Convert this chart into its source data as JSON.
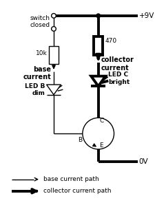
{
  "bg_color": "#ffffff",
  "fig_width": 2.26,
  "fig_height": 3.14,
  "dpi": 100,
  "lw_thin": 1.0,
  "lw_thick": 2.8,
  "labels": {
    "switch_closed": "switch\nclosed",
    "10k": "10k",
    "base_current": "base\ncurrent",
    "LED_B": "LED B\ndim",
    "470": "470",
    "collector_current": "collector\ncurrent",
    "LED_C": "LED C\nbright",
    "plus9V": "+9V",
    "0V": "0V",
    "B": "B",
    "C": "C",
    "E": "E",
    "base_path": "base current path",
    "collector_path": "collector current path"
  }
}
